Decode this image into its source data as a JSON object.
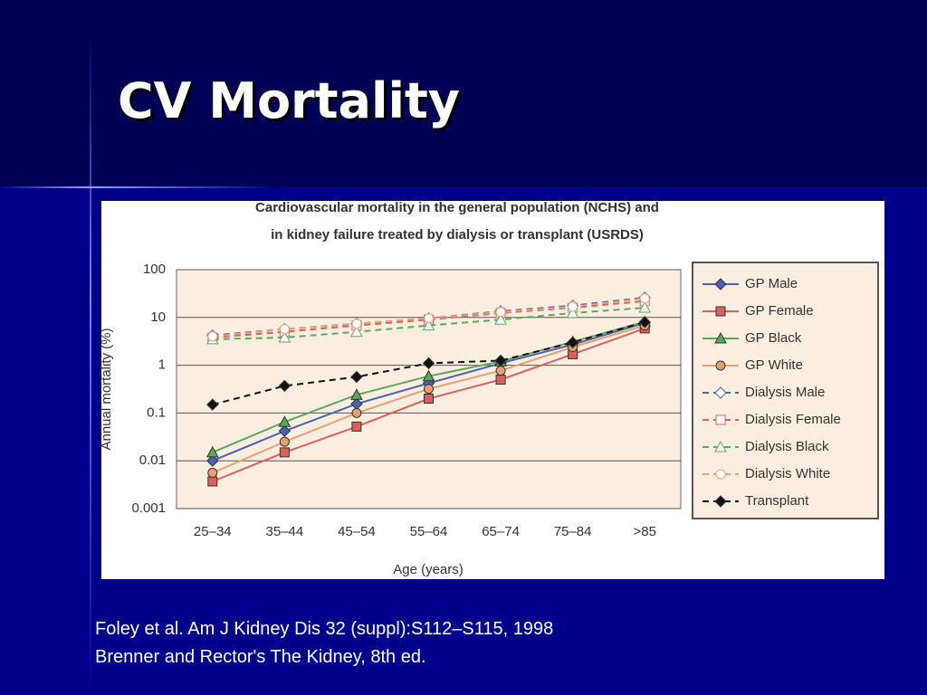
{
  "slide": {
    "title": "CV Mortality",
    "citations": [
      "Foley et al.  Am J Kidney Dis 32 (suppl):S112–S115, 1998",
      "Brenner and Rector's The Kidney, 8th ed."
    ]
  },
  "chart_data": {
    "type": "line",
    "title": [
      "Cardiovascular mortality in the general population (NCHS) and",
      "in kidney failure treated by dialysis or transplant (USRDS)"
    ],
    "x_label": "Age (years)",
    "y_label": "Annual mortality (%)",
    "categories": [
      "25–34",
      "35–44",
      "45–54",
      "55–64",
      "65–74",
      "75–84",
      ">85"
    ],
    "ylim": [
      0.001,
      100
    ],
    "yticks": [
      0.001,
      0.01,
      0.1,
      1,
      10,
      100
    ],
    "log_scale": true,
    "grid": true,
    "legend": "right",
    "series": [
      {
        "name": "GP Male",
        "color": "#4a63b0",
        "marker": "diamond",
        "dashed": false,
        "hollow": false,
        "values": [
          0.01,
          0.042,
          0.155,
          0.42,
          1.1,
          2.7,
          7.7
        ]
      },
      {
        "name": "GP Female",
        "color": "#d9625e",
        "marker": "square",
        "dashed": false,
        "hollow": false,
        "values": [
          0.0037,
          0.015,
          0.052,
          0.2,
          0.5,
          1.7,
          5.9
        ]
      },
      {
        "name": "GP Black",
        "color": "#5aa85a",
        "marker": "triangle",
        "dashed": false,
        "hollow": false,
        "values": [
          0.015,
          0.065,
          0.24,
          0.59,
          1.2,
          3.1,
          8.1
        ]
      },
      {
        "name": "GP White",
        "color": "#e8a070",
        "marker": "circle",
        "dashed": false,
        "hollow": false,
        "values": [
          0.0056,
          0.025,
          0.1,
          0.32,
          0.77,
          2.4,
          6.8
        ]
      },
      {
        "name": "Dialysis Male",
        "color": "#4a63b0",
        "marker": "diamond",
        "dashed": true,
        "hollow": true,
        "values": [
          4.2,
          5.7,
          7.4,
          9.6,
          13.5,
          17.7,
          26
        ]
      },
      {
        "name": "Dialysis Female",
        "color": "#d9625e",
        "marker": "square",
        "dashed": true,
        "hollow": true,
        "values": [
          3.8,
          5,
          6.8,
          9,
          12.4,
          16,
          22
        ]
      },
      {
        "name": "Dialysis Black",
        "color": "#5aa85a",
        "marker": "triangle",
        "dashed": true,
        "hollow": true,
        "values": [
          3.5,
          3.8,
          5,
          6.8,
          9,
          12.4,
          16
        ]
      },
      {
        "name": "Dialysis White",
        "color": "#e8a070",
        "marker": "circle",
        "dashed": true,
        "hollow": true,
        "values": [
          4,
          5.7,
          7.4,
          9.6,
          13,
          16.8,
          25
        ]
      },
      {
        "name": "Transplant",
        "color": "#111111",
        "marker": "diamond",
        "dashed": true,
        "hollow": false,
        "values": [
          0.15,
          0.37,
          0.57,
          1.1,
          1.25,
          3,
          8
        ]
      }
    ]
  }
}
